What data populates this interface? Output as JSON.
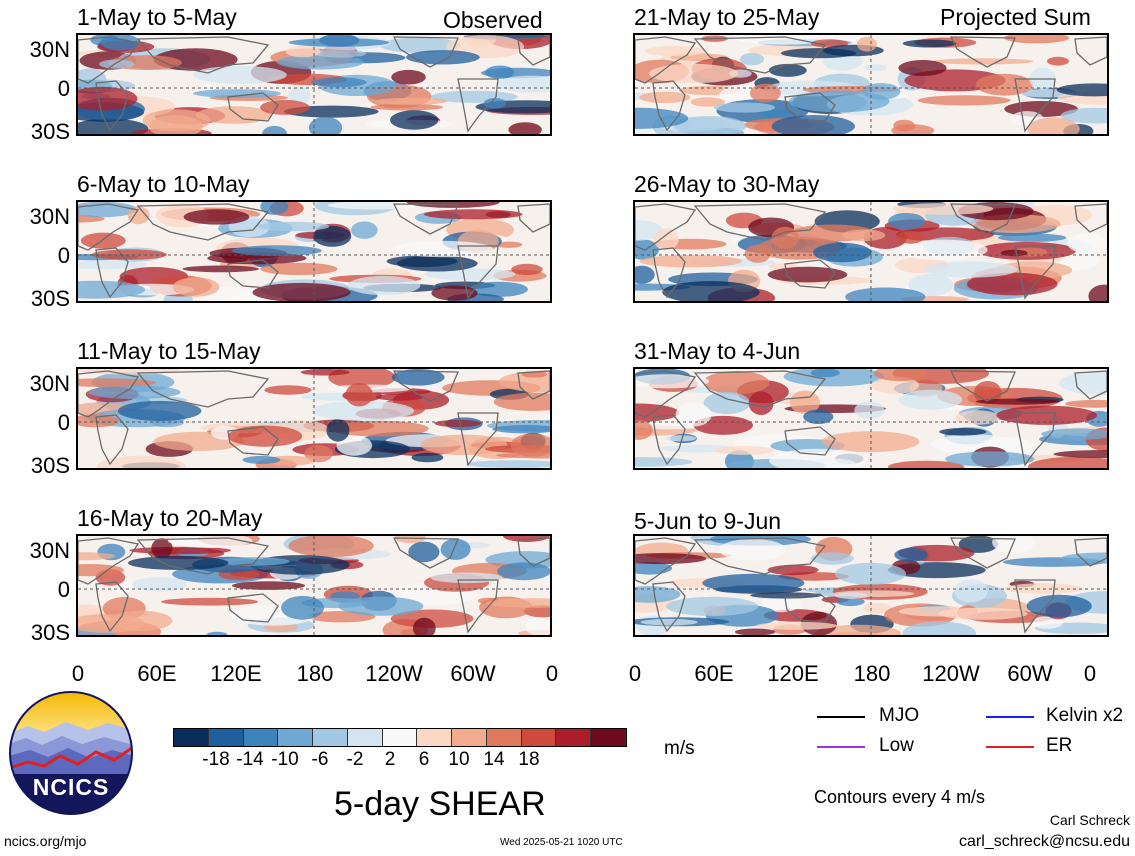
{
  "headers": {
    "left": "Observed",
    "right": "Projected Sum"
  },
  "panels": [
    {
      "title": "1-May to 5-May"
    },
    {
      "title": "6-May to 10-May"
    },
    {
      "title": "11-May to 15-May"
    },
    {
      "title": "16-May to 20-May"
    },
    {
      "title": "21-May to 25-May"
    },
    {
      "title": "26-May to 30-May"
    },
    {
      "title": "31-May to 4-Jun"
    },
    {
      "title": "5-Jun to 9-Jun"
    }
  ],
  "lat_labels": [
    "30N",
    "0",
    "30S"
  ],
  "lon_labels": [
    "0",
    "60E",
    "120E",
    "180",
    "120W",
    "60W",
    "0"
  ],
  "colorbar": {
    "colors": [
      "#0a2d5c",
      "#1f5f9e",
      "#3d84bd",
      "#6ea8d3",
      "#a3c8e3",
      "#d4e5f1",
      "#f8f8f8",
      "#fbd8c6",
      "#f2ab8e",
      "#e07a5f",
      "#cd4a3c",
      "#ac1d2b",
      "#6e0a1e"
    ],
    "labels": [
      "-18",
      "-14",
      "-10",
      "-6",
      "-2",
      "2",
      "6",
      "10",
      "14",
      "18"
    ],
    "units": "m/s"
  },
  "title": "5-day SHEAR",
  "legend": [
    {
      "label": "MJO",
      "color": "#000000"
    },
    {
      "label": "Kelvin x2",
      "color": "#1a1aff"
    },
    {
      "label": "Low",
      "color": "#a030e0"
    },
    {
      "label": "ER",
      "color": "#e02020"
    }
  ],
  "contours_note": "Contours every 4 m/s",
  "logo_text": "NCICS",
  "footer": {
    "left": "ncics.org/mjo",
    "center": "Wed 2025-05-21 1020 UTC",
    "author": "Carl Schreck",
    "email": "carl_schreck@ncsu.edu"
  }
}
